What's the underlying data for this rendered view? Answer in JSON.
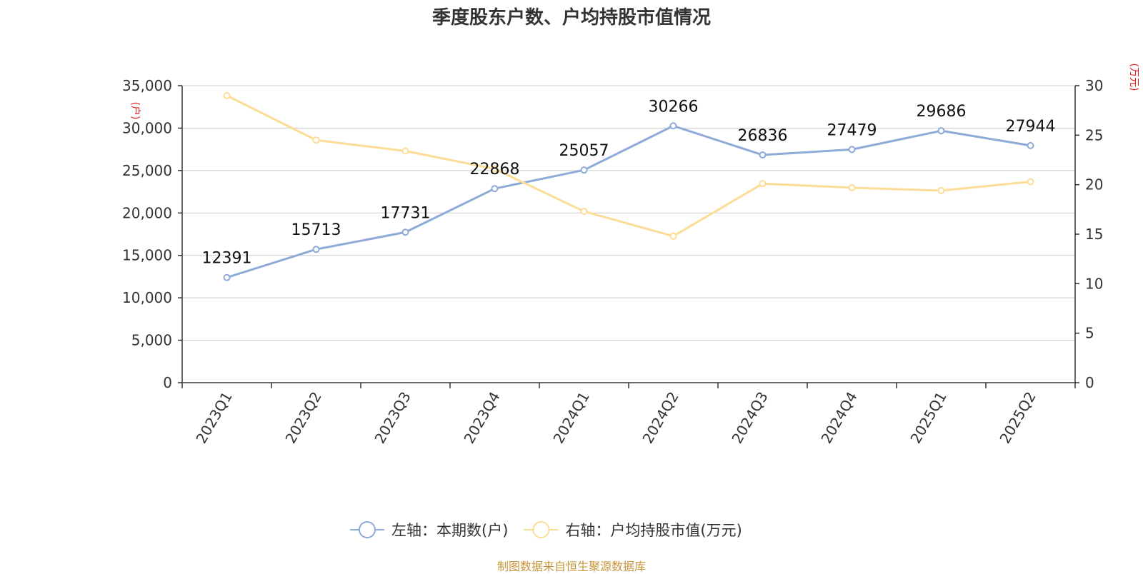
{
  "title": "季度股东户数、户均持股市值情况",
  "source": "制图数据来自恒生聚源数据库",
  "chart_data": {
    "type": "line",
    "title": "季度股东户数、户均持股市值情况",
    "categories": [
      "2023Q1",
      "2023Q2",
      "2023Q3",
      "2023Q4",
      "2024Q1",
      "2024Q2",
      "2024Q3",
      "2024Q4",
      "2025Q1",
      "2025Q2"
    ],
    "left_axis": {
      "unit": "(户)",
      "ylim": [
        0,
        35000
      ],
      "ticks": [
        0,
        5000,
        10000,
        15000,
        20000,
        25000,
        30000,
        35000
      ],
      "tick_labels": [
        "0",
        "5,000",
        "10,000",
        "15,000",
        "20,000",
        "25,000",
        "30,000",
        "35,000"
      ]
    },
    "right_axis": {
      "unit": "(万元)",
      "ylim": [
        0,
        30
      ],
      "ticks": [
        0,
        5,
        10,
        15,
        20,
        25,
        30
      ],
      "tick_labels": [
        "0",
        "5",
        "10",
        "15",
        "20",
        "25",
        "30"
      ]
    },
    "series": [
      {
        "name": "左轴：本期数(户)",
        "axis": "left",
        "color": "#8eaad8",
        "values": [
          12391,
          15713,
          17731,
          22868,
          25057,
          30266,
          26836,
          27479,
          29686,
          27944
        ],
        "labels": [
          "12391",
          "15713",
          "17731",
          "22868",
          "25057",
          "30266",
          "26836",
          "27479",
          "29686",
          "27944"
        ]
      },
      {
        "name": "右轴：户均持股市值(万元)",
        "axis": "right",
        "color": "#fddc96",
        "values": [
          29.0,
          24.5,
          23.4,
          21.6,
          17.3,
          14.8,
          20.1,
          19.7,
          19.4,
          20.3
        ]
      }
    ],
    "grid": true,
    "legend_position": "bottom-center"
  }
}
